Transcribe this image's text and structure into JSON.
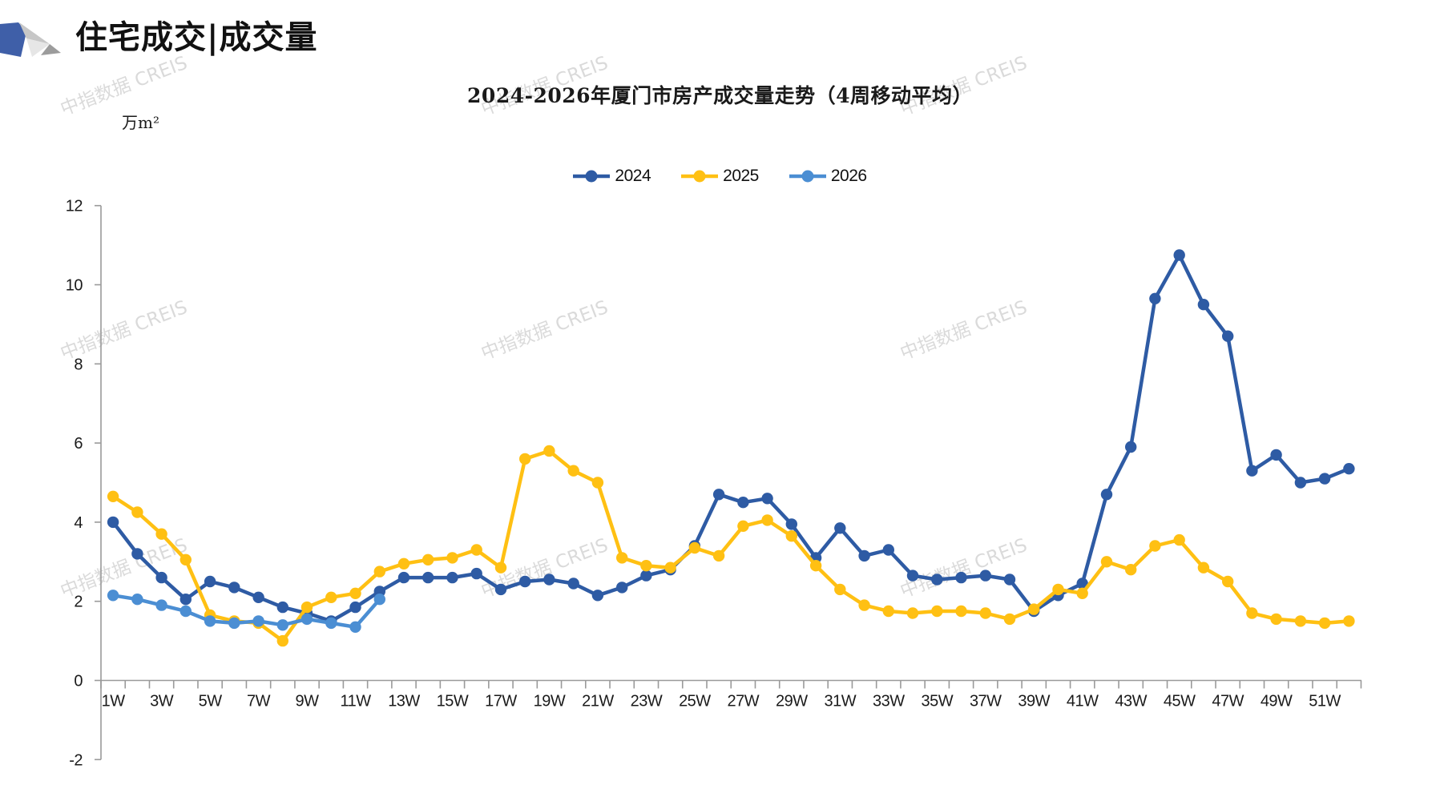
{
  "header": {
    "title": "住宅成交|成交量"
  },
  "watermark": {
    "text": "中指数据 CREIS"
  },
  "chart_data": {
    "type": "line",
    "title": "2024-2026年厦门市房产成交量走势（4周移动平均）",
    "unit_label": "万m²",
    "xlabel": "",
    "ylabel": "万m²",
    "ylim": [
      -2,
      12
    ],
    "y_ticks": [
      12,
      10,
      8,
      6,
      4,
      2,
      0,
      -2
    ],
    "weeks": 52,
    "x_tick_labels": [
      "1W",
      "3W",
      "5W",
      "7W",
      "9W",
      "11W",
      "13W",
      "15W",
      "17W",
      "19W",
      "21W",
      "23W",
      "25W",
      "27W",
      "29W",
      "31W",
      "33W",
      "35W",
      "37W",
      "39W",
      "41W",
      "43W",
      "45W",
      "47W",
      "49W",
      "51W"
    ],
    "legend_position": "top",
    "grid": false,
    "axis_color": "#9a9a9a",
    "label_color": "#1a1a1a",
    "series": [
      {
        "name": "2024",
        "color": "#2e5ba4",
        "values": [
          4.0,
          3.2,
          2.6,
          2.05,
          2.5,
          2.35,
          2.1,
          1.85,
          1.7,
          1.5,
          1.85,
          2.25,
          2.6,
          2.6,
          2.6,
          2.7,
          2.3,
          2.5,
          2.55,
          2.45,
          2.15,
          2.35,
          2.65,
          2.8,
          3.4,
          4.7,
          4.5,
          4.6,
          3.95,
          3.1,
          3.85,
          3.15,
          3.3,
          2.65,
          2.55,
          2.6,
          2.65,
          2.55,
          1.75,
          2.15,
          2.45,
          4.7,
          5.9,
          9.65,
          10.75,
          9.5,
          8.7,
          5.3,
          5.7,
          5.0,
          5.1,
          5.35
        ]
      },
      {
        "name": "2025",
        "color": "#ffc013",
        "values": [
          4.65,
          4.25,
          3.7,
          3.05,
          1.65,
          1.5,
          1.45,
          1.0,
          1.85,
          2.1,
          2.2,
          2.75,
          2.95,
          3.05,
          3.1,
          3.3,
          2.85,
          5.6,
          5.8,
          5.3,
          5.0,
          3.1,
          2.9,
          2.85,
          3.35,
          3.15,
          3.9,
          4.05,
          3.65,
          2.9,
          2.3,
          1.9,
          1.75,
          1.7,
          1.75,
          1.75,
          1.7,
          1.55,
          1.8,
          2.3,
          2.2,
          3.0,
          2.8,
          3.4,
          3.55,
          2.85,
          2.5,
          1.7,
          1.55,
          1.5,
          1.45,
          1.5
        ]
      },
      {
        "name": "2026",
        "color": "#4b8ed3",
        "values": [
          2.15,
          2.05,
          1.9,
          1.75,
          1.5,
          1.45,
          1.5,
          1.4,
          1.55,
          1.45,
          1.35,
          2.05
        ]
      }
    ]
  }
}
